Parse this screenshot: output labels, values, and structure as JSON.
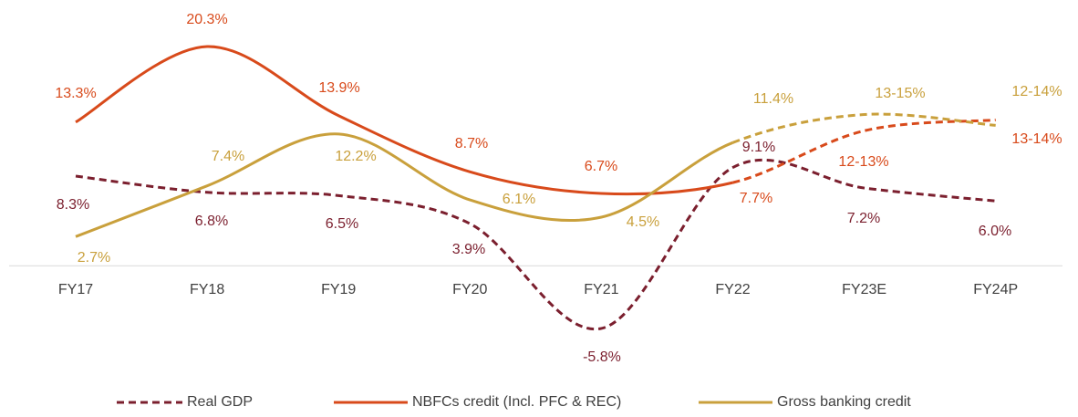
{
  "chart_data": {
    "type": "line",
    "categories": [
      "FY17",
      "FY18",
      "FY19",
      "FY20",
      "FY21",
      "FY22",
      "FY23E",
      "FY24P"
    ],
    "series": [
      {
        "name": "Real GDP",
        "color": "#7b1f2e",
        "line_style": "dashed",
        "values": [
          8.3,
          6.8,
          6.5,
          3.9,
          -5.8,
          9.1,
          7.2,
          6.0
        ],
        "value_labels": [
          "8.3%",
          "6.8%",
          "6.5%",
          "3.9%",
          "-5.8%",
          "9.1%",
          "7.2%",
          "6.0%"
        ]
      },
      {
        "name": "NBFCs credit (Incl. PFC & REC)",
        "color": "#d84a1b",
        "line_style": "solid",
        "dashed_after": "FY22",
        "values": [
          13.3,
          20.3,
          13.9,
          8.7,
          6.7,
          7.7,
          12.5,
          13.5
        ],
        "value_labels": [
          "13.3%",
          "20.3%",
          "13.9%",
          "8.7%",
          "6.7%",
          "7.7%",
          "12-13%",
          "13-14%"
        ]
      },
      {
        "name": "Gross banking credit",
        "color": "#c9a03c",
        "line_style": "solid",
        "dashed_after": "FY22",
        "values": [
          2.7,
          7.4,
          12.2,
          6.1,
          4.5,
          11.4,
          14,
          13
        ],
        "value_labels": [
          "2.7%",
          "7.4%",
          "12.2%",
          "6.1%",
          "4.5%",
          "11.4%",
          "13-15%",
          "12-14%"
        ]
      }
    ],
    "ylim": [
      -8,
      23
    ],
    "legend": "bottom"
  }
}
